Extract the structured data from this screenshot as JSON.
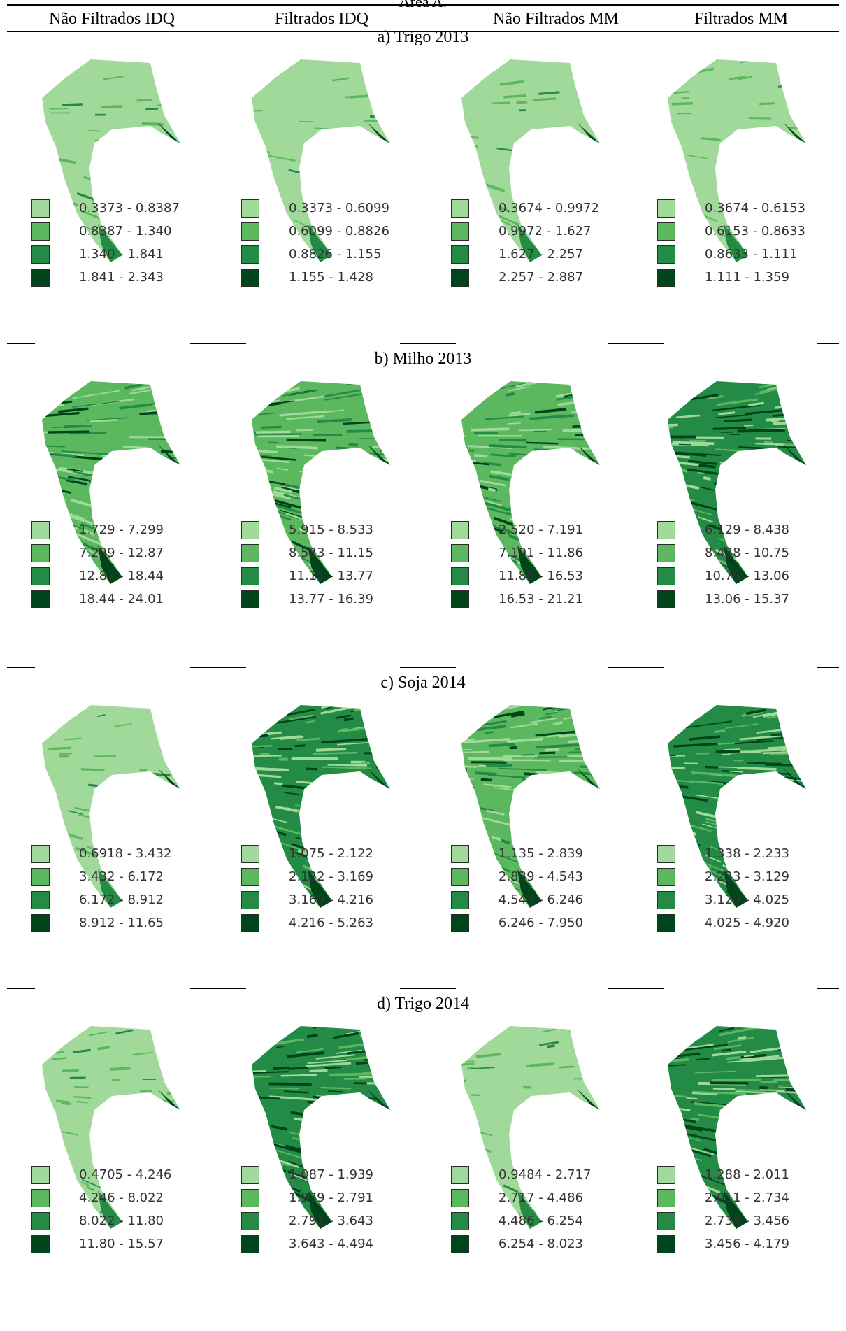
{
  "figure_caption": "Área A.",
  "columns": [
    "Não Filtrados IDQ",
    "Filtrados IDQ",
    "Não Filtrados MM",
    "Filtrados MM"
  ],
  "colors": {
    "class1": "#a1d99b",
    "class2": "#5bb85f",
    "class3": "#238b45",
    "class4": "#00441b",
    "outline": "#2b2b2b"
  },
  "sections": [
    {
      "title": "a) Trigo 2013",
      "panels": [
        {
          "classes": [
            "0.3373 - 0.8387",
            "0.8387 - 1.340",
            "1.340 - 1.841",
            "1.841 - 2.343"
          ],
          "dominant_class": 1
        },
        {
          "classes": [
            "0.3373 - 0.6099",
            "0.6099 - 0.8826",
            "0.8826 - 1.155",
            "1.155 - 1.428"
          ],
          "dominant_class": 1
        },
        {
          "classes": [
            "0.3674 - 0.9972",
            "0.9972 - 1.627",
            "1.627 - 2.257",
            "2.257 - 2.887"
          ],
          "dominant_class": 1
        },
        {
          "classes": [
            "0.3674 - 0.6153",
            "0.6153 - 0.8633",
            "0.8633 - 1.111",
            "1.111 - 1.359"
          ],
          "dominant_class": 1
        }
      ]
    },
    {
      "title": "b) Milho 2013",
      "panels": [
        {
          "classes": [
            "1.729 - 7.299",
            "7.299 - 12.87",
            "12.87 - 18.44",
            "18.44 - 24.01"
          ],
          "dominant_class": 2
        },
        {
          "classes": [
            "5.915 - 8.533",
            "8.533 - 11.15",
            "11.15 - 13.77",
            "13.77 - 16.39"
          ],
          "dominant_class": 2
        },
        {
          "classes": [
            "2.520 - 7.191",
            "7.191 - 11.86",
            "11.86 - 16.53",
            "16.53 - 21.21"
          ],
          "dominant_class": 2
        },
        {
          "classes": [
            "6.129 - 8.438",
            "8.438 - 10.75",
            "10.75 - 13.06",
            "13.06 - 15.37"
          ],
          "dominant_class": 3
        }
      ]
    },
    {
      "title": "c) Soja 2014",
      "panels": [
        {
          "classes": [
            "0.6918 - 3.432",
            "3.432 - 6.172",
            "6.172 - 8.912",
            "8.912 - 11.65"
          ],
          "dominant_class": 1
        },
        {
          "classes": [
            "1.075 - 2.122",
            "2.122 - 3.169",
            "3.169 - 4.216",
            "4.216 - 5.263"
          ],
          "dominant_class": 3
        },
        {
          "classes": [
            "1.135 - 2.839",
            "2.839 - 4.543",
            "4.543 - 6.246",
            "6.246 - 7.950"
          ],
          "dominant_class": 2
        },
        {
          "classes": [
            "1.338 - 2.233",
            "2.233 - 3.129",
            "3.129 - 4.025",
            "4.025 - 4.920"
          ],
          "dominant_class": 3
        }
      ]
    },
    {
      "title": "d) Trigo 2014",
      "panels": [
        {
          "classes": [
            "0.4705 - 4.246",
            "4.246 - 8.022",
            "8.022 - 11.80",
            "11.80 - 15.57"
          ],
          "dominant_class": 1
        },
        {
          "classes": [
            "1.087 - 1.939",
            "1.939 - 2.791",
            "2.791 - 3.643",
            "3.643 - 4.494"
          ],
          "dominant_class": 3
        },
        {
          "classes": [
            "0.9484 - 2.717",
            "2.717 - 4.486",
            "4.486 - 6.254",
            "6.254 - 8.023"
          ],
          "dominant_class": 1
        },
        {
          "classes": [
            "1.288 - 2.011",
            "2.011 - 2.734",
            "2.734 - 3.456",
            "3.456 - 4.179"
          ],
          "dominant_class": 3
        }
      ]
    }
  ]
}
